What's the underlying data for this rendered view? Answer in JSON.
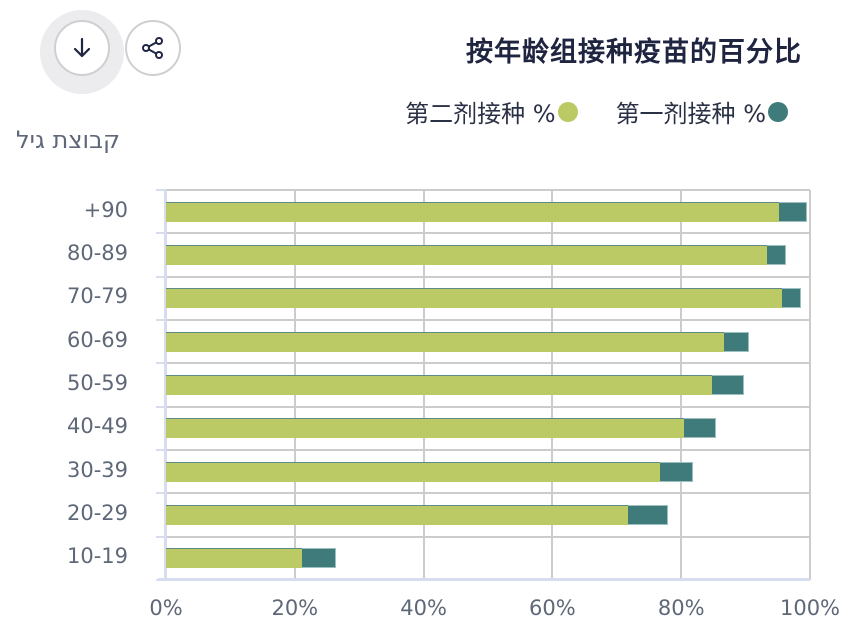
{
  "toolbar": {
    "download_icon": "arrow-down-icon",
    "share_icon": "share-icon"
  },
  "chart_data": {
    "type": "bar",
    "orientation": "horizontal",
    "stacked": "overlay",
    "title": "按年龄组接种疫苗的百分比",
    "ylabel": "קבוצת גיל",
    "xlabel": "",
    "xlim": [
      0,
      100
    ],
    "x_ticks": [
      "0%",
      "20%",
      "40%",
      "60%",
      "80%",
      "100%"
    ],
    "grid": true,
    "legend_position": "top-right",
    "categories": [
      "+90",
      "80-89",
      "70-79",
      "60-69",
      "50-59",
      "40-49",
      "30-39",
      "20-29",
      "10-19"
    ],
    "series": [
      {
        "name": "第二剂接种 %",
        "color": "#bcca66",
        "values": [
          95.2,
          93.3,
          95.7,
          86.6,
          84.8,
          80.4,
          76.7,
          71.7,
          21.1
        ]
      },
      {
        "name": "第一剂接种 %",
        "color": "#3f7b7a",
        "values": [
          99.5,
          96.3,
          98.6,
          90.5,
          89.8,
          85.4,
          81.8,
          77.9,
          26.4
        ]
      }
    ]
  },
  "legend": {
    "second_dose": {
      "label": "第二剂接种 %",
      "color": "#bcca66"
    },
    "first_dose": {
      "label": "第一剂接种 %",
      "color": "#3f7b7a"
    }
  }
}
